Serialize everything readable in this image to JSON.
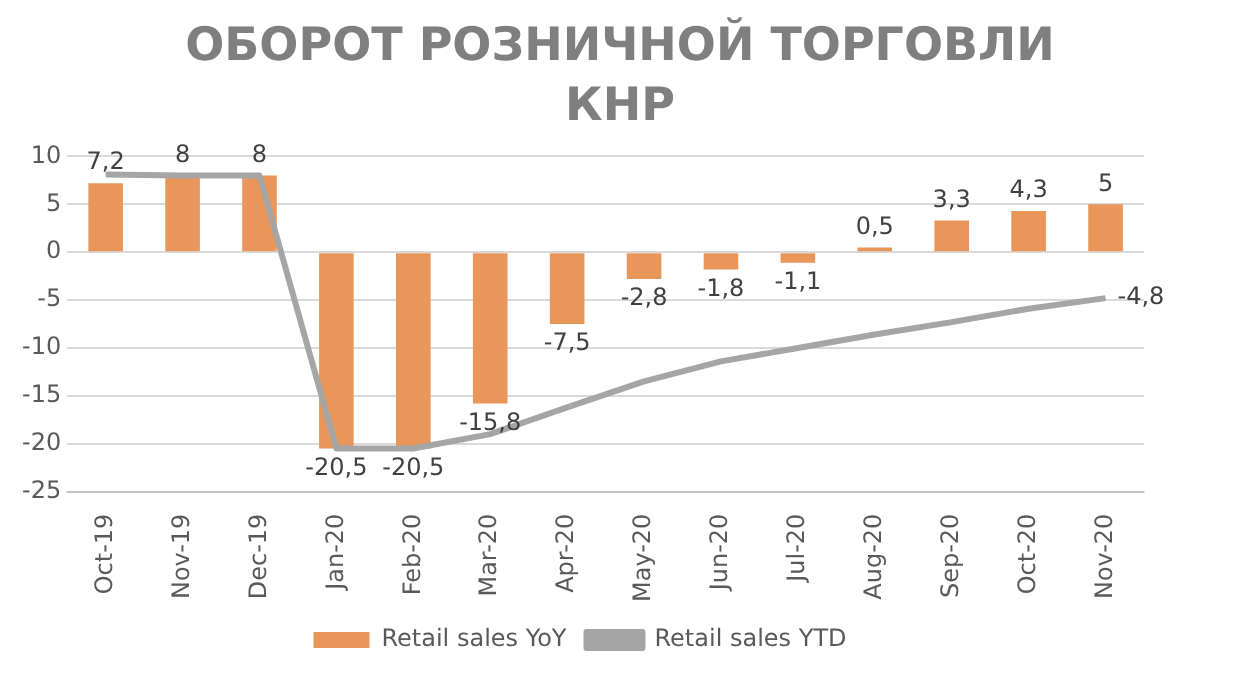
{
  "chart_data": {
    "type": "bar",
    "title": "ОБОРОТ РОЗНИЧНОЙ ТОРГОВЛИ КНР",
    "categories": [
      "Oct-19",
      "Nov-19",
      "Dec-19",
      "Jan-20",
      "Feb-20",
      "Mar-20",
      "Apr-20",
      "May-20",
      "Jun-20",
      "Jul-20",
      "Aug-20",
      "Sep-20",
      "Oct-20",
      "Nov-20"
    ],
    "series": [
      {
        "name": "Retail sales YoY",
        "color": "#e8965a",
        "values": [
          7.2,
          8,
          8,
          -20.5,
          -20.5,
          -15.8,
          -7.5,
          -2.8,
          -1.8,
          -1.1,
          0.5,
          3.3,
          4.3,
          5
        ],
        "value_labels": [
          "7,2",
          "8",
          "8",
          "-20,5",
          "-20,5",
          "-15,8",
          "-7,5",
          "-2,8",
          "-1,8",
          "-1,1",
          "0,5",
          "3,3",
          "4,3",
          "5"
        ]
      },
      {
        "name": "Retail sales YTD",
        "type": "line",
        "color": "#a5a5a5",
        "values": [
          8.1,
          8.0,
          8.0,
          -20.5,
          -20.5,
          -19.0,
          -16.2,
          -13.5,
          -11.4,
          -10.0,
          -8.6,
          -7.3,
          -5.9,
          -4.8
        ],
        "value_labels": [
          null,
          null,
          null,
          null,
          null,
          null,
          null,
          null,
          null,
          null,
          null,
          null,
          null,
          "-4,8"
        ]
      }
    ],
    "ylim": [
      -25,
      10
    ],
    "yticks": [
      -25,
      -20,
      -15,
      -10,
      -5,
      0,
      5,
      10
    ],
    "grid": "y",
    "legend": "bottom",
    "marker": "none",
    "line_style": "solid"
  }
}
